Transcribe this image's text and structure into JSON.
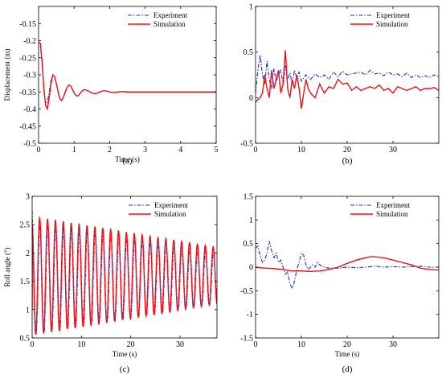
{
  "colors": {
    "experiment": "#1f2bd6",
    "simulation": "#e8121a",
    "axis": "#000000"
  },
  "chart_data": [
    {
      "id": "a",
      "type": "line",
      "panel_label": "(a)",
      "xlabel": "Time (s)",
      "ylabel": "Displacement (m)",
      "xlim": [
        0,
        5
      ],
      "ylim": [
        -0.5,
        -0.1
      ],
      "xticks": [
        "0",
        "1",
        "2",
        "3",
        "4",
        "5"
      ],
      "yticks": [
        "-0.5",
        "-0.45",
        "-0.4",
        "-0.35",
        "-0.3",
        "-0.25",
        "-0.2",
        "-0.15"
      ],
      "legend": [
        "Experiment",
        "Simulation"
      ],
      "legend_position": "top-right",
      "series": [
        {
          "name": "Experiment",
          "style": "dash-dot",
          "x": [
            0,
            0.05,
            0.1,
            0.15,
            0.2,
            0.25,
            0.3,
            0.35,
            0.4,
            0.45,
            0.5,
            0.55,
            0.6,
            0.65,
            0.7,
            0.75,
            0.8,
            0.85,
            0.9,
            0.95,
            1.0,
            1.05,
            1.1,
            1.15,
            1.2,
            1.25,
            1.3,
            1.4,
            1.5,
            1.6,
            1.7,
            1.8,
            1.9,
            2.0,
            2.1,
            2.2,
            2.3,
            2.4,
            2.5,
            2.7,
            3.0,
            3.5,
            4.0,
            4.5,
            5.0
          ],
          "y": [
            -0.205,
            -0.207,
            -0.26,
            -0.34,
            -0.385,
            -0.38,
            -0.35,
            -0.315,
            -0.3,
            -0.305,
            -0.325,
            -0.35,
            -0.37,
            -0.375,
            -0.365,
            -0.35,
            -0.337,
            -0.33,
            -0.332,
            -0.342,
            -0.352,
            -0.36,
            -0.362,
            -0.357,
            -0.35,
            -0.345,
            -0.343,
            -0.347,
            -0.353,
            -0.355,
            -0.351,
            -0.347,
            -0.347,
            -0.35,
            -0.352,
            -0.351,
            -0.349,
            -0.349,
            -0.35,
            -0.35,
            -0.35,
            -0.35,
            -0.35,
            -0.35,
            -0.35
          ]
        },
        {
          "name": "Simulation",
          "style": "solid",
          "x": [
            0,
            0.05,
            0.1,
            0.15,
            0.2,
            0.25,
            0.3,
            0.35,
            0.4,
            0.45,
            0.5,
            0.55,
            0.6,
            0.65,
            0.7,
            0.75,
            0.8,
            0.85,
            0.9,
            0.95,
            1.0,
            1.05,
            1.1,
            1.15,
            1.2,
            1.25,
            1.3,
            1.4,
            1.5,
            1.6,
            1.7,
            1.8,
            1.9,
            2.0,
            2.1,
            2.2,
            2.3,
            2.4,
            2.5,
            2.7,
            3.0,
            3.5,
            4.0,
            4.5,
            5.0
          ],
          "y": [
            -0.205,
            -0.208,
            -0.265,
            -0.345,
            -0.39,
            -0.4,
            -0.365,
            -0.325,
            -0.3,
            -0.305,
            -0.325,
            -0.35,
            -0.37,
            -0.375,
            -0.365,
            -0.35,
            -0.337,
            -0.33,
            -0.332,
            -0.342,
            -0.352,
            -0.36,
            -0.362,
            -0.357,
            -0.35,
            -0.345,
            -0.343,
            -0.347,
            -0.353,
            -0.355,
            -0.351,
            -0.347,
            -0.347,
            -0.35,
            -0.352,
            -0.351,
            -0.349,
            -0.349,
            -0.35,
            -0.35,
            -0.35,
            -0.35,
            -0.35,
            -0.35,
            -0.35
          ]
        }
      ]
    },
    {
      "id": "b",
      "type": "line",
      "panel_label": "(b)",
      "xlabel": "",
      "ylabel": "",
      "xlim": [
        0,
        40
      ],
      "ylim": [
        -0.5,
        1
      ],
      "xticks": [
        "0",
        "10",
        "20",
        "30"
      ],
      "yticks": [
        "-0.5",
        "0",
        "0.5",
        "1"
      ],
      "legend": [
        "Experiment",
        "Simulation"
      ],
      "legend_position": "top-right",
      "series": [
        {
          "name": "Experiment",
          "style": "dash-dot",
          "x": [
            0,
            0.5,
            1,
            1.5,
            2,
            2.5,
            3,
            3.5,
            4,
            4.5,
            5,
            5.5,
            6,
            6.5,
            7,
            7.5,
            8,
            8.5,
            9,
            9.5,
            10,
            11,
            12,
            13,
            14,
            15,
            16,
            17,
            18,
            19,
            20,
            21,
            22,
            23,
            24,
            25,
            26,
            27,
            28,
            29,
            30,
            31,
            32,
            33,
            34,
            35,
            36,
            37,
            38,
            39,
            40
          ],
          "y": [
            0.05,
            0.3,
            0.47,
            0.25,
            0.15,
            0.4,
            0.2,
            0.1,
            0.32,
            0.18,
            0.25,
            0.3,
            0.15,
            0.35,
            0.2,
            0.27,
            0.15,
            0.3,
            0.22,
            0.28,
            0.18,
            0.25,
            0.2,
            0.26,
            0.22,
            0.25,
            0.2,
            0.28,
            0.23,
            0.29,
            0.25,
            0.26,
            0.27,
            0.28,
            0.25,
            0.3,
            0.26,
            0.27,
            0.24,
            0.28,
            0.25,
            0.26,
            0.23,
            0.27,
            0.22,
            0.25,
            0.22,
            0.24,
            0.22,
            0.25,
            0.23
          ]
        },
        {
          "name": "Simulation",
          "style": "solid",
          "x": [
            0,
            0.5,
            1,
            1.5,
            2,
            2.5,
            3,
            3.5,
            4,
            4.5,
            5,
            5.5,
            6,
            6.5,
            7,
            7.5,
            8,
            8.5,
            9,
            9.5,
            10,
            10.5,
            11,
            11.5,
            12,
            13,
            14,
            15,
            16,
            17,
            18,
            19,
            20,
            21,
            22,
            23,
            24,
            25,
            26,
            27,
            28,
            29,
            30,
            31,
            32,
            33,
            34,
            35,
            36,
            37,
            38,
            39,
            40
          ],
          "y": [
            -0.05,
            -0.02,
            0.0,
            0.05,
            0.25,
            0.1,
            0.0,
            0.3,
            0.1,
            0.2,
            0.3,
            0.05,
            0.15,
            0.52,
            0.1,
            0.0,
            0.2,
            0.1,
            0.25,
            0.1,
            -0.12,
            0.05,
            0.2,
            0.1,
            0.05,
            0.0,
            0.15,
            0.05,
            0.12,
            0.1,
            0.2,
            0.15,
            0.16,
            0.08,
            0.12,
            0.08,
            0.1,
            0.12,
            0.1,
            0.14,
            0.08,
            0.1,
            0.05,
            0.12,
            0.1,
            0.08,
            0.1,
            0.12,
            0.08,
            0.1,
            0.1,
            0.11,
            0.08
          ]
        }
      ]
    },
    {
      "id": "c",
      "type": "line",
      "panel_label": "(c)",
      "xlabel": "Time (s)",
      "ylabel": "Roll angle (°)",
      "xlim": [
        0,
        37.5
      ],
      "ylim": [
        0.5,
        3
      ],
      "xticks": [
        "0",
        "10",
        "20",
        "30"
      ],
      "yticks": [
        "0.5",
        "1",
        "1.5",
        "2",
        "2.5",
        "3"
      ],
      "legend": [
        "Experiment",
        "Simulation"
      ],
      "legend_position": "top-right",
      "series": [
        {
          "name": "Experiment",
          "style": "dash-dot",
          "damped": {
            "center": 1.55,
            "amp_start": 1.0,
            "amp_end": 0.45,
            "period": 1.6,
            "phase": 0.0,
            "x0": 0,
            "x1": 37.5,
            "start": 2.75
          }
        },
        {
          "name": "Simulation",
          "style": "solid",
          "damped": {
            "center": 1.6,
            "amp_start": 1.05,
            "amp_end": 0.5,
            "period": 1.6,
            "phase": 0.3,
            "x0": 0,
            "x1": 37.5,
            "start": 1.0
          }
        }
      ]
    },
    {
      "id": "d",
      "type": "line",
      "panel_label": "(d)",
      "xlabel": "Time (s)",
      "ylabel": "",
      "xlim": [
        0,
        40
      ],
      "ylim": [
        -1.5,
        1.5
      ],
      "xticks": [
        "0",
        "10",
        "20",
        "30"
      ],
      "yticks": [
        "-1.5",
        "-1",
        "-0.5",
        "0",
        "0.5",
        "1",
        "1.5"
      ],
      "legend": [
        "Experiment",
        "Simulation"
      ],
      "legend_position": "top-right",
      "series": [
        {
          "name": "Experiment",
          "style": "dash-dot",
          "x": [
            0,
            0.5,
            1,
            1.5,
            2,
            2.5,
            3,
            3.5,
            4,
            4.5,
            5,
            5.5,
            6,
            6.5,
            7,
            7.5,
            8,
            8.5,
            9,
            9.5,
            10,
            10.5,
            11,
            11.5,
            12,
            12.5,
            13,
            13.5,
            14,
            15,
            16,
            18,
            20,
            22,
            24,
            26,
            28,
            30,
            32,
            34,
            36,
            38,
            40
          ],
          "y": [
            0.4,
            0.45,
            0.25,
            0.1,
            0.15,
            0.3,
            0.55,
            0.35,
            0.2,
            0.3,
            0.1,
            0.15,
            0.0,
            -0.15,
            -0.1,
            -0.35,
            -0.45,
            -0.3,
            -0.05,
            0.1,
            0.3,
            0.25,
            0.05,
            -0.05,
            0.0,
            0.05,
            0.0,
            0.1,
            0.05,
            0.0,
            -0.02,
            -0.02,
            0.0,
            -0.01,
            0.0,
            0.02,
            0.0,
            0.01,
            0.0,
            0.01,
            0.02,
            0.0,
            0.0
          ]
        },
        {
          "name": "Simulation",
          "style": "solid",
          "x": [
            0,
            2,
            4,
            6,
            8,
            10,
            12,
            14,
            16,
            18,
            20,
            22,
            24,
            25,
            26,
            28,
            30,
            32,
            34,
            36,
            38,
            40
          ],
          "y": [
            0.0,
            -0.02,
            -0.03,
            -0.05,
            -0.08,
            -0.08,
            -0.09,
            -0.08,
            -0.05,
            0.0,
            0.08,
            0.15,
            0.2,
            0.22,
            0.22,
            0.2,
            0.15,
            0.1,
            0.05,
            -0.02,
            -0.05,
            -0.06
          ]
        }
      ]
    }
  ]
}
